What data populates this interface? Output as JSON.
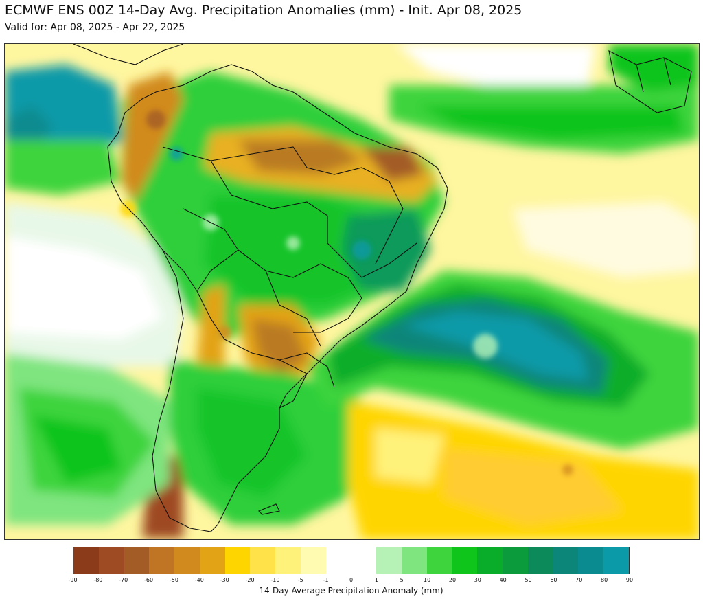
{
  "title": "ECMWF ENS 00Z 14-Day Avg. Precipitation Anomalies (mm) - Init. Apr 08, 2025",
  "subtitle": "Valid for: Apr 08, 2025 - Apr 22, 2025",
  "map": {
    "region": "South America",
    "variable": "14-day average precipitation anomaly",
    "dominant_pattern": "wet (green/teal) over central Brazil and the South Atlantic storm band; dry (brown/yellow) over northern Brazil, Paraguay/Uruguay, southern Andes"
  },
  "legend": {
    "label": "14-Day Average Precipitation Anomaly (mm)",
    "ticks": [
      "-90",
      "-80",
      "-70",
      "-60",
      "-50",
      "-40",
      "-30",
      "-20",
      "-10",
      "-5",
      "-1",
      "0",
      "1",
      "5",
      "10",
      "20",
      "30",
      "40",
      "50",
      "60",
      "70",
      "80",
      "90"
    ],
    "colors": [
      "#8b3a1a",
      "#9e4a22",
      "#a35c26",
      "#c07524",
      "#d18a1e",
      "#e3a317",
      "#ffd500",
      "#ffe24a",
      "#fff27a",
      "#fffbb0",
      "#ffffff",
      "#ffffff",
      "#b6f2b6",
      "#7fe57f",
      "#3ed43e",
      "#0fc41b",
      "#0aad2a",
      "#0b9a3c",
      "#0c8a5a",
      "#0b8679",
      "#0a8b8f",
      "#0a9aa8"
    ]
  }
}
